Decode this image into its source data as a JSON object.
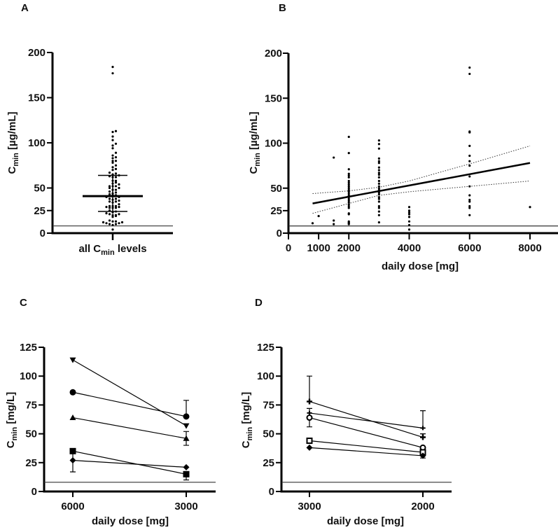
{
  "panels": {
    "A": {
      "letter": "A"
    },
    "B": {
      "letter": "B"
    },
    "C": {
      "letter": "C"
    },
    "D": {
      "letter": "D"
    }
  },
  "chart_data": [
    {
      "id": "A",
      "type": "scatter",
      "title": "",
      "ylabel": {
        "main": "C",
        "sub": "min",
        "unit": " [µg/mL]"
      },
      "xlabel": {
        "pre": "all C",
        "sub": "min",
        "post": " levels"
      },
      "yticks": [
        0,
        25,
        50,
        100,
        150,
        200
      ],
      "ylim": [
        0,
        200
      ],
      "lloq": 8,
      "median": 41,
      "q1": 24,
      "q3": 64,
      "values": [
        11,
        19,
        84,
        14,
        10,
        107,
        89,
        71,
        66,
        64,
        62,
        58,
        56,
        54,
        52,
        50,
        48,
        46,
        44,
        42,
        40,
        38,
        36,
        34,
        32,
        30,
        28,
        22,
        21,
        13,
        12,
        11,
        10,
        103,
        99,
        94,
        83,
        80,
        78,
        73,
        70,
        67,
        65,
        62,
        58,
        55,
        52,
        50,
        48,
        45,
        43,
        40,
        38,
        35,
        30,
        28,
        24,
        20,
        12,
        29,
        25,
        23,
        21,
        18,
        13,
        9,
        4,
        184,
        177,
        113,
        112,
        97,
        86,
        80,
        75,
        63,
        52,
        42,
        37,
        35,
        30,
        28,
        20,
        29
      ]
    },
    {
      "id": "B",
      "type": "scatter",
      "ylabel": {
        "main": "C",
        "sub": "min",
        "unit": " [µg/mL]"
      },
      "xlabel": "daily dose [mg]",
      "xticks": [
        0,
        1000,
        2000,
        4000,
        6000,
        8000
      ],
      "yticks": [
        0,
        25,
        50,
        100,
        150,
        200
      ],
      "xlim": [
        0,
        9000
      ],
      "ylim": [
        0,
        200
      ],
      "lloq": 8,
      "points": [
        {
          "x": 800,
          "y": [
            11
          ]
        },
        {
          "x": 1000,
          "y": [
            19
          ]
        },
        {
          "x": 1500,
          "y": [
            84,
            14,
            10
          ]
        },
        {
          "x": 2000,
          "y": [
            107,
            89,
            71,
            66,
            64,
            62,
            58,
            56,
            54,
            52,
            50,
            48,
            46,
            44,
            42,
            40,
            38,
            36,
            34,
            32,
            30,
            28,
            22,
            21,
            13,
            12,
            11,
            10
          ]
        },
        {
          "x": 3000,
          "y": [
            103,
            99,
            94,
            83,
            80,
            78,
            73,
            70,
            67,
            65,
            62,
            58,
            55,
            52,
            50,
            48,
            45,
            43,
            40,
            38,
            35,
            30,
            28,
            24,
            20,
            12
          ]
        },
        {
          "x": 4000,
          "y": [
            29,
            25,
            23,
            21,
            18,
            13,
            9,
            4
          ]
        },
        {
          "x": 6000,
          "y": [
            184,
            177,
            113,
            112,
            97,
            86,
            80,
            75,
            63,
            52,
            42,
            37,
            35,
            30,
            28,
            20
          ]
        },
        {
          "x": 8000,
          "y": [
            29
          ]
        }
      ],
      "regression": {
        "x": [
          800,
          8000
        ],
        "y": [
          33,
          78
        ]
      },
      "ci_upper": {
        "x": [
          800,
          2000,
          3000,
          4000,
          6000,
          8000
        ],
        "y": [
          44,
          47,
          51,
          58,
          77,
          97
        ]
      },
      "ci_lower": {
        "x": [
          800,
          2000,
          3000,
          4000,
          6000,
          8000
        ],
        "y": [
          22,
          33,
          42,
          46,
          52,
          58
        ]
      }
    },
    {
      "id": "C",
      "type": "line",
      "ylabel": {
        "main": "C",
        "sub": "min",
        "unit": " [mg/L]"
      },
      "xlabel": "daily dose [mg]",
      "categories": [
        "6000",
        "3000"
      ],
      "yticks": [
        0,
        25,
        50,
        75,
        100,
        125
      ],
      "ylim": [
        0,
        125
      ],
      "lloq": 8,
      "series": [
        {
          "marker": "triangle-down",
          "values": [
            114,
            57
          ],
          "err": [
            null,
            null
          ]
        },
        {
          "marker": "circle",
          "values": [
            86,
            65
          ],
          "err": [
            null,
            [
              65,
              79
            ]
          ]
        },
        {
          "marker": "triangle-up",
          "values": [
            64,
            46
          ],
          "err": [
            null,
            [
              40,
              52
            ]
          ]
        },
        {
          "marker": "square",
          "values": [
            35,
            15
          ],
          "err": [
            null,
            [
              10,
              15
            ]
          ]
        },
        {
          "marker": "diamond",
          "values": [
            27,
            21
          ],
          "err": [
            [
              17,
              35
            ],
            null
          ]
        }
      ]
    },
    {
      "id": "D",
      "type": "line",
      "ylabel": {
        "main": "C",
        "sub": "min",
        "unit": " [mg/L]"
      },
      "xlabel": "daily dose [mg]",
      "categories": [
        "3000",
        "2000"
      ],
      "yticks": [
        0,
        25,
        50,
        75,
        100,
        125
      ],
      "ylim": [
        0,
        125
      ],
      "lloq": 8,
      "series": [
        {
          "marker": "star",
          "values": [
            78,
            47
          ],
          "err": [
            [
              78,
              100
            ],
            [
              47,
              50
            ]
          ]
        },
        {
          "marker": "cross",
          "values": [
            68,
            55
          ],
          "err": [
            [
              68,
              72
            ],
            [
              55,
              70
            ]
          ]
        },
        {
          "marker": "circle-open",
          "values": [
            64,
            38
          ],
          "err": [
            [
              56,
              64
            ],
            null
          ]
        },
        {
          "marker": "square-open",
          "values": [
            44,
            34
          ],
          "err": [
            null,
            null
          ]
        },
        {
          "marker": "diamond",
          "values": [
            38,
            31
          ],
          "err": [
            null,
            [
              29,
              31
            ]
          ]
        }
      ]
    }
  ]
}
